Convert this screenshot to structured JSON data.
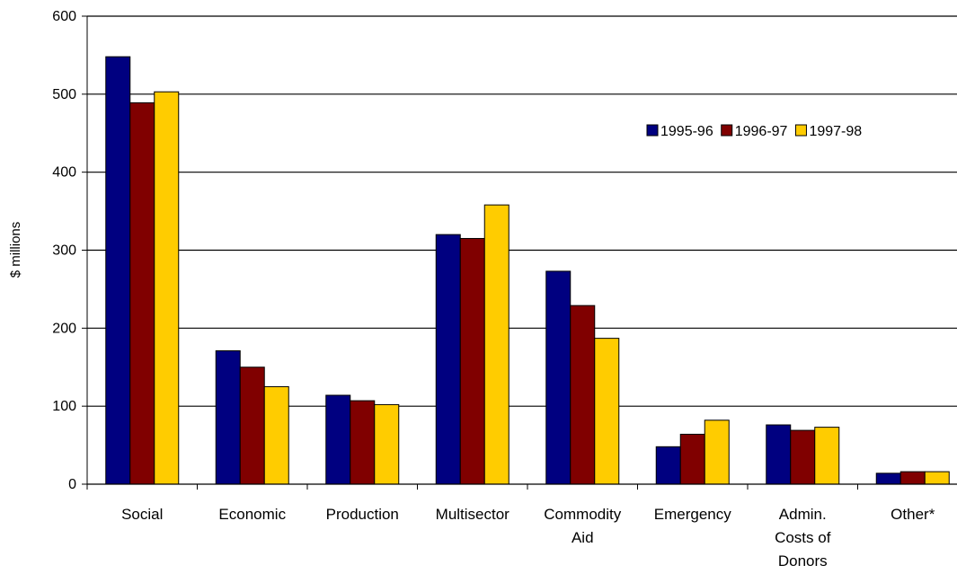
{
  "chart_data": {
    "type": "bar",
    "title": "",
    "xlabel": "",
    "ylabel": "$ millions",
    "ylim": [
      0,
      600
    ],
    "yticks": [
      0,
      100,
      200,
      300,
      400,
      500,
      600
    ],
    "grid": true,
    "legend_position": "top-right",
    "categories": [
      [
        "Social"
      ],
      [
        "Economic"
      ],
      [
        "Production"
      ],
      [
        "Multisector"
      ],
      [
        "Commodity",
        "Aid"
      ],
      [
        "Emergency"
      ],
      [
        "Admin.",
        "Costs of",
        "Donors"
      ],
      [
        "Other*"
      ]
    ],
    "series": [
      {
        "name": "1995-96",
        "color": "#000080",
        "values": [
          548,
          171,
          114,
          320,
          273,
          48,
          76,
          14
        ]
      },
      {
        "name": "1996-97",
        "color": "#800000",
        "values": [
          489,
          150,
          107,
          315,
          229,
          64,
          69,
          16
        ]
      },
      {
        "name": "1997-98",
        "color": "#FFCC00",
        "values": [
          503,
          125,
          102,
          358,
          187,
          82,
          73,
          16
        ]
      }
    ]
  }
}
